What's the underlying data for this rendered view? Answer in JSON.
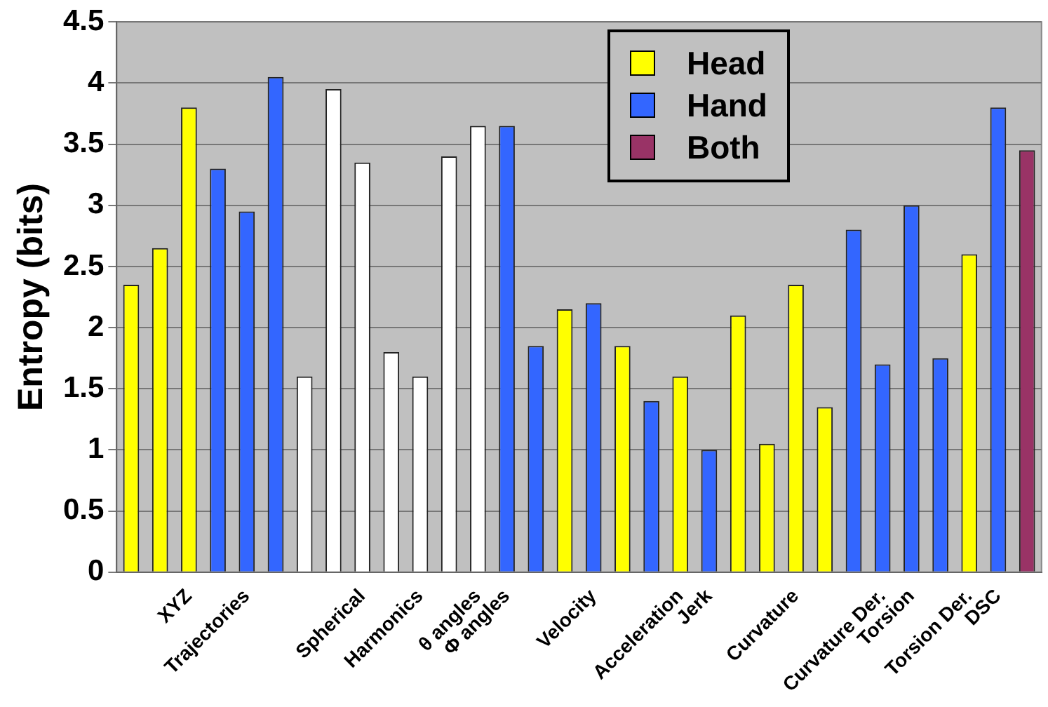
{
  "chart_data": {
    "type": "bar",
    "ylabel": "Entropy (bits)",
    "categories": [
      null,
      null,
      "XYZ",
      null,
      "Trajectories",
      null,
      null,
      null,
      "Spherical",
      null,
      "Harmonics",
      null,
      "θ angles",
      "Φ angles",
      null,
      null,
      "Velocity",
      null,
      null,
      "Acceleration",
      "Jerk",
      null,
      null,
      "Curvature",
      null,
      null,
      "Curvature Der.",
      "Torsion",
      null,
      "Torsion Der.",
      "DSC",
      null
    ],
    "series": [
      {
        "name": "Head",
        "color": "#ffff00",
        "values": [
          2.35,
          2.65,
          3.8,
          null,
          null,
          null,
          null,
          null,
          null,
          null,
          null,
          null,
          null,
          null,
          null,
          2.15,
          null,
          1.85,
          null,
          1.6,
          null,
          2.1,
          1.05,
          2.35,
          1.35,
          null,
          null,
          null,
          null,
          2.6,
          null,
          null
        ]
      },
      {
        "name": "Hand",
        "color": "#3366ff",
        "values": [
          null,
          null,
          null,
          3.3,
          2.95,
          4.05,
          null,
          null,
          null,
          null,
          null,
          null,
          null,
          3.65,
          1.85,
          null,
          2.2,
          null,
          1.4,
          null,
          1.0,
          null,
          null,
          null,
          null,
          2.8,
          1.7,
          3.0,
          1.75,
          null,
          3.8,
          null
        ]
      },
      {
        "name": "Both",
        "color": "#993366",
        "values": [
          null,
          null,
          null,
          null,
          null,
          null,
          null,
          null,
          null,
          null,
          null,
          null,
          null,
          null,
          null,
          null,
          null,
          null,
          null,
          null,
          null,
          null,
          null,
          null,
          null,
          null,
          null,
          null,
          null,
          null,
          null,
          3.45
        ]
      },
      {
        "color": "#ffffff",
        "values": [
          null,
          null,
          null,
          null,
          null,
          null,
          1.6,
          3.95,
          3.35,
          1.8,
          1.6,
          3.4,
          3.65,
          null,
          null,
          null,
          null,
          null,
          null,
          null,
          null,
          null,
          null,
          null,
          null,
          null,
          null,
          null,
          null,
          null,
          null,
          null
        ]
      }
    ],
    "ylim": [
      0,
      4.5
    ],
    "yticks": [
      0,
      0.5,
      1,
      1.5,
      2,
      2.5,
      3,
      3.5,
      4,
      4.5
    ],
    "grid": "y",
    "legend": "top"
  }
}
